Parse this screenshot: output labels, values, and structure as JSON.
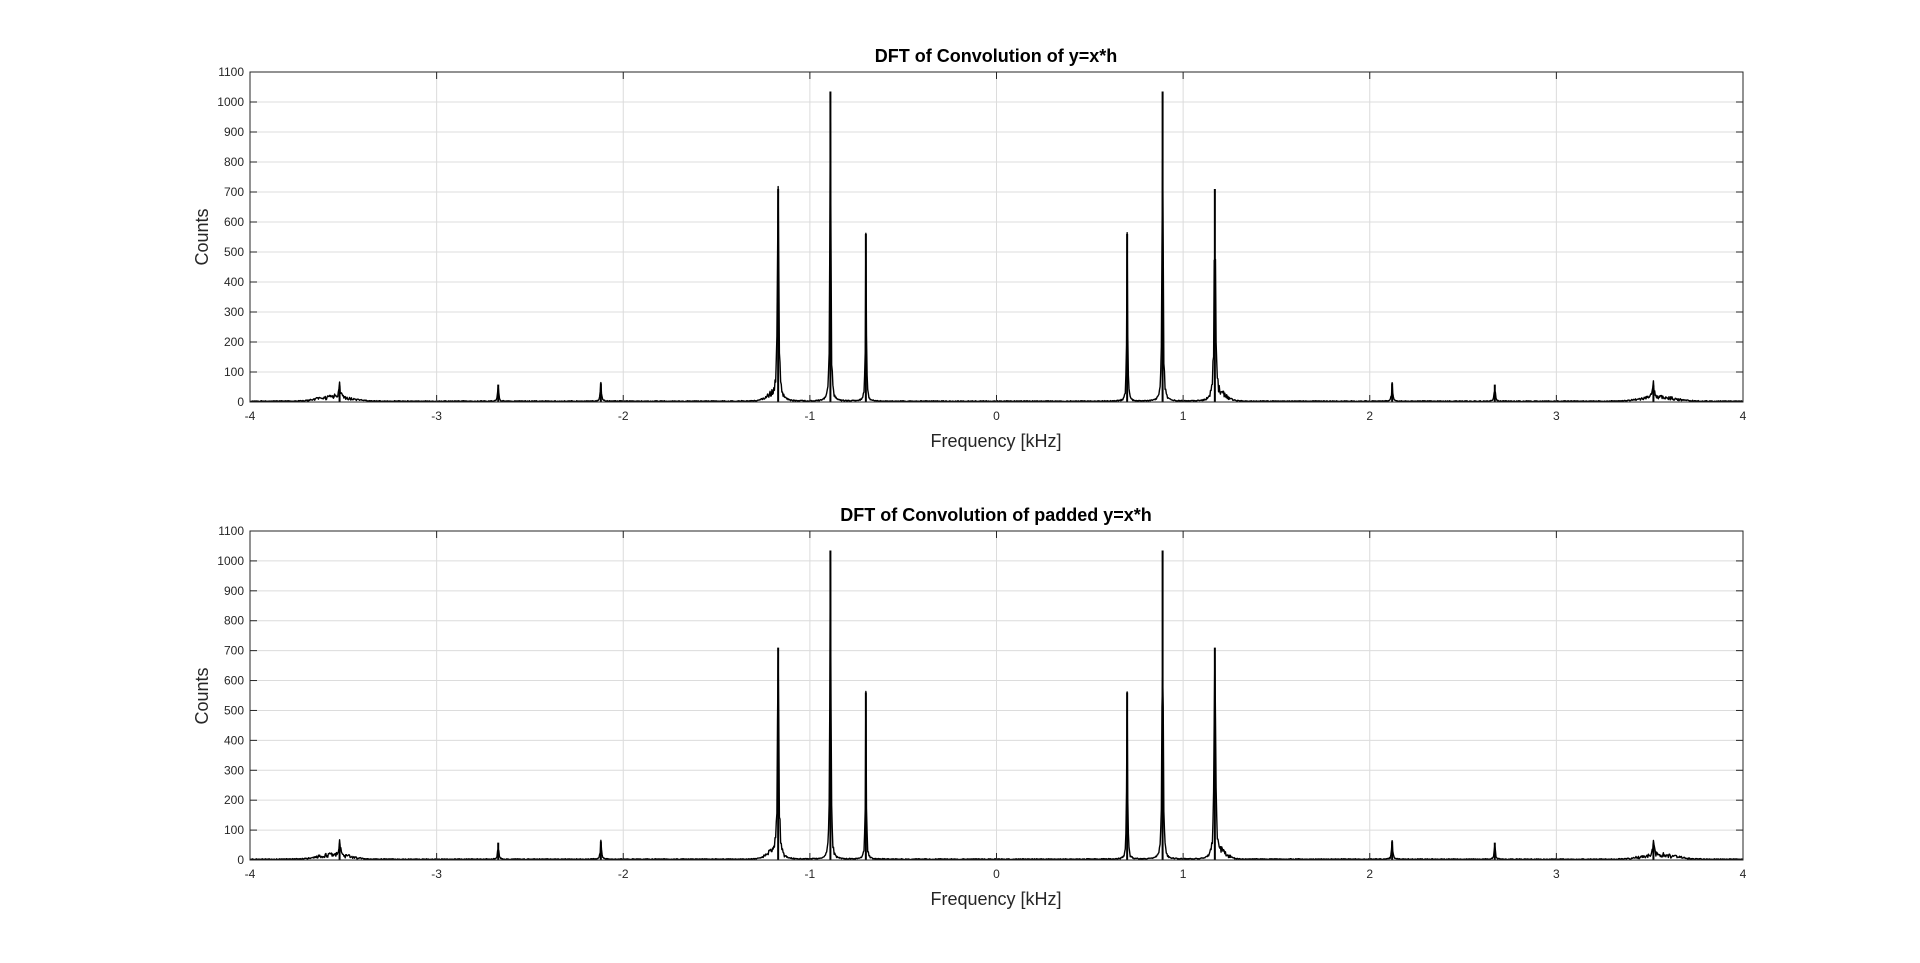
{
  "figure": {
    "background": "#ffffff"
  },
  "style": {
    "grid_color": "#dcdcdc",
    "axis_color": "#262626",
    "line_color": "#000000"
  },
  "chart_data": [
    {
      "type": "line",
      "title": "DFT of Convolution of y=x*h",
      "xlabel": "Frequency [kHz]",
      "ylabel": "Counts",
      "xlim": [
        -4,
        4
      ],
      "ylim": [
        0,
        1100
      ],
      "xticks": [
        -4,
        -3,
        -2,
        -1,
        0,
        1,
        2,
        3,
        4
      ],
      "yticks": [
        0,
        100,
        200,
        300,
        400,
        500,
        600,
        700,
        800,
        900,
        1000,
        1100
      ],
      "grid": true,
      "legend": "none",
      "series": [
        {
          "color": "#000000",
          "peaks": [
            {
              "x": -3.52,
              "y": 55,
              "w": 0.012
            },
            {
              "x": -2.67,
              "y": 58,
              "w": 0.008
            },
            {
              "x": -2.12,
              "y": 62,
              "w": 0.009
            },
            {
              "x": -1.17,
              "y": 710,
              "w": 0.011
            },
            {
              "x": -0.89,
              "y": 1035,
              "w": 0.008
            },
            {
              "x": -0.7,
              "y": 560,
              "w": 0.007
            },
            {
              "x": 0.7,
              "y": 560,
              "w": 0.007
            },
            {
              "x": 0.89,
              "y": 1035,
              "w": 0.008
            },
            {
              "x": 1.17,
              "y": 710,
              "w": 0.011
            },
            {
              "x": 2.12,
              "y": 62,
              "w": 0.009
            },
            {
              "x": 2.67,
              "y": 58,
              "w": 0.008
            },
            {
              "x": 3.52,
              "y": 55,
              "w": 0.012
            }
          ],
          "humps": [
            {
              "x": -3.55,
              "y": 18,
              "w": 0.12
            },
            {
              "x": -1.2,
              "y": 25,
              "w": 0.05
            },
            {
              "x": 1.2,
              "y": 25,
              "w": 0.05
            },
            {
              "x": 3.55,
              "y": 18,
              "w": 0.12
            }
          ],
          "baseline": 3
        }
      ]
    },
    {
      "type": "line",
      "title": "DFT of Convolution of padded y=x*h",
      "xlabel": "Frequency [kHz]",
      "ylabel": "Counts",
      "xlim": [
        -4,
        4
      ],
      "ylim": [
        0,
        1100
      ],
      "xticks": [
        -4,
        -3,
        -2,
        -1,
        0,
        1,
        2,
        3,
        4
      ],
      "yticks": [
        0,
        100,
        200,
        300,
        400,
        500,
        600,
        700,
        800,
        900,
        1000,
        1100
      ],
      "grid": true,
      "legend": "none",
      "series": [
        {
          "color": "#000000",
          "peaks": [
            {
              "x": -3.52,
              "y": 55,
              "w": 0.012
            },
            {
              "x": -2.67,
              "y": 58,
              "w": 0.008
            },
            {
              "x": -2.12,
              "y": 62,
              "w": 0.009
            },
            {
              "x": -1.17,
              "y": 710,
              "w": 0.011
            },
            {
              "x": -0.89,
              "y": 1035,
              "w": 0.008
            },
            {
              "x": -0.7,
              "y": 560,
              "w": 0.007
            },
            {
              "x": 0.7,
              "y": 560,
              "w": 0.007
            },
            {
              "x": 0.89,
              "y": 1035,
              "w": 0.008
            },
            {
              "x": 1.17,
              "y": 710,
              "w": 0.011
            },
            {
              "x": 2.12,
              "y": 62,
              "w": 0.009
            },
            {
              "x": 2.67,
              "y": 58,
              "w": 0.008
            },
            {
              "x": 3.52,
              "y": 55,
              "w": 0.012
            }
          ],
          "humps": [
            {
              "x": -3.55,
              "y": 18,
              "w": 0.12
            },
            {
              "x": -1.2,
              "y": 25,
              "w": 0.05
            },
            {
              "x": 1.2,
              "y": 25,
              "w": 0.05
            },
            {
              "x": 3.55,
              "y": 18,
              "w": 0.12
            }
          ],
          "baseline": 3
        }
      ]
    }
  ]
}
